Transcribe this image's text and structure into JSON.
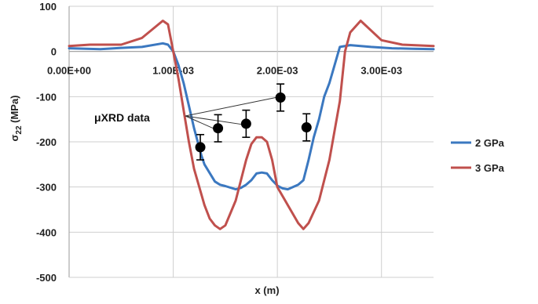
{
  "chart_data": {
    "type": "line",
    "xlabel": "x (m)",
    "ylabel": "σ22 (MPa)",
    "ylabel_main": "σ",
    "ylabel_sub": "22",
    "ylabel_unit": " (MPa)",
    "xlim": [
      0,
      0.0035
    ],
    "ylim": [
      -500,
      100
    ],
    "xticks": [
      0,
      0.001,
      0.002,
      0.003
    ],
    "xtick_labels": [
      "0.00E+00",
      "1.00E-03",
      "2.00E-03",
      "3.00E-03"
    ],
    "yticks": [
      100,
      0,
      -100,
      -200,
      -300,
      -400,
      -500
    ],
    "ytick_labels": [
      "100",
      "0",
      "-100",
      "-200",
      "-300",
      "-400",
      "-500"
    ],
    "grid": true,
    "legend_position": "right",
    "series": [
      {
        "name": "2 GPa",
        "color": "#3b78c0",
        "x": [
          0,
          0.0003,
          0.0005,
          0.0007,
          0.0009,
          0.00095,
          0.001,
          0.00105,
          0.0011,
          0.00115,
          0.0012,
          0.00127,
          0.0013,
          0.0014,
          0.00145,
          0.0015,
          0.0016,
          0.00165,
          0.0017,
          0.00175,
          0.0018,
          0.00185,
          0.0019,
          0.00195,
          0.002,
          0.00205,
          0.0021,
          0.0022,
          0.00225,
          0.0023,
          0.00235,
          0.0024,
          0.00245,
          0.0025,
          0.0026,
          0.0027,
          0.0029,
          0.0031,
          0.0033,
          0.0035
        ],
        "values": [
          7,
          5,
          8,
          10,
          18,
          15,
          0,
          -30,
          -70,
          -120,
          -170,
          -230,
          -250,
          -288,
          -295,
          -298,
          -305,
          -302,
          -295,
          -285,
          -270,
          -268,
          -270,
          -285,
          -297,
          -303,
          -305,
          -295,
          -285,
          -240,
          -190,
          -150,
          -100,
          -70,
          10,
          14,
          10,
          7,
          6,
          5
        ]
      },
      {
        "name": "3 GPa",
        "color": "#c0504d",
        "x": [
          0,
          0.0002,
          0.0005,
          0.0007,
          0.0009,
          0.00095,
          0.001,
          0.00105,
          0.0011,
          0.00115,
          0.0012,
          0.0013,
          0.00135,
          0.0014,
          0.00145,
          0.0015,
          0.0016,
          0.0017,
          0.00175,
          0.0018,
          0.00185,
          0.0019,
          0.00195,
          0.002,
          0.0021,
          0.0022,
          0.00225,
          0.0023,
          0.0024,
          0.0025,
          0.0026,
          0.00265,
          0.0027,
          0.0028,
          0.003,
          0.0032,
          0.0035
        ],
        "values": [
          12,
          15,
          15,
          30,
          68,
          60,
          0,
          -60,
          -130,
          -200,
          -260,
          -340,
          -370,
          -385,
          -393,
          -385,
          -330,
          -240,
          -205,
          -190,
          -190,
          -200,
          -240,
          -300,
          -340,
          -380,
          -393,
          -380,
          -330,
          -240,
          -110,
          0,
          42,
          68,
          25,
          15,
          12
        ]
      }
    ],
    "scatter": {
      "name": "μXRD data",
      "color": "#000000",
      "points": [
        {
          "x": 0.00126,
          "y": -212,
          "err": 28
        },
        {
          "x": 0.00143,
          "y": -170,
          "err": 30
        },
        {
          "x": 0.0017,
          "y": -160,
          "err": 30
        },
        {
          "x": 0.00203,
          "y": -102,
          "err": 30
        },
        {
          "x": 0.00228,
          "y": -168,
          "err": 30
        }
      ]
    },
    "annotation": "μXRD data"
  }
}
